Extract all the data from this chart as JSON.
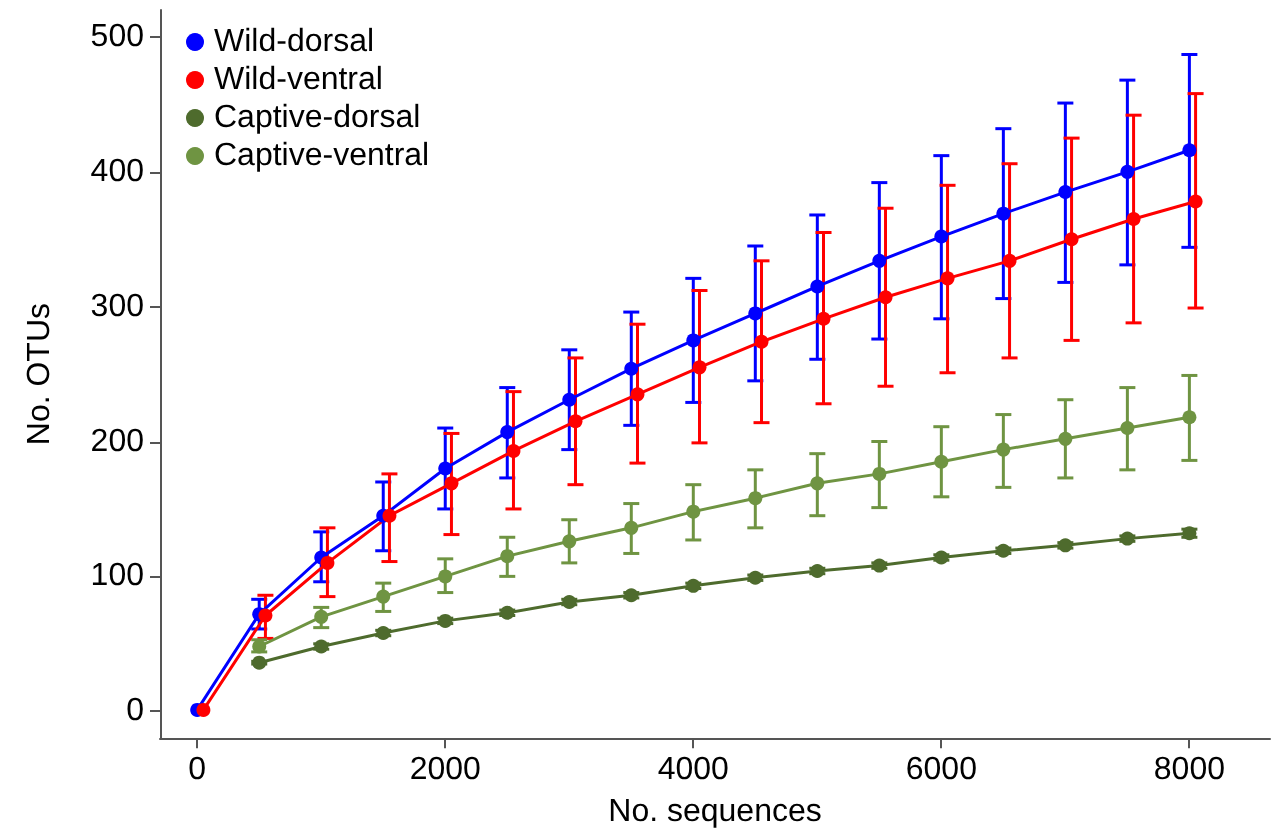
{
  "chart_data": {
    "type": "line",
    "xlabel": "No. sequences",
    "ylabel": "No. OTUs",
    "xlim": [
      -300,
      8650
    ],
    "xticks": [
      0,
      2000,
      4000,
      6000,
      8000
    ],
    "ylim": [
      -20,
      520
    ],
    "yticks": [
      0,
      100,
      200,
      300,
      400,
      500
    ],
    "grid": false,
    "legend": "top left",
    "marker": "circle",
    "line_style": "solid",
    "series": [
      {
        "name": "Wild-dorsal",
        "color": "#0000ff",
        "x": [
          0,
          500,
          1000,
          1500,
          2000,
          2500,
          3000,
          3500,
          4000,
          4500,
          5000,
          5500,
          6000,
          6500,
          7000,
          7500,
          8000
        ],
        "values": [
          1,
          72,
          114,
          145,
          180,
          207,
          231,
          254,
          275,
          295,
          315,
          334,
          352,
          369,
          385,
          400,
          416
        ],
        "errors": [
          null,
          [
            61,
            83
          ],
          [
            96,
            133
          ],
          [
            119,
            170
          ],
          [
            150,
            210
          ],
          [
            173,
            240
          ],
          [
            194,
            268
          ],
          [
            212,
            296
          ],
          [
            229,
            321
          ],
          [
            245,
            345
          ],
          [
            261,
            368
          ],
          [
            276,
            392
          ],
          [
            291,
            412
          ],
          [
            306,
            432
          ],
          [
            318,
            451
          ],
          [
            331,
            468
          ],
          [
            344,
            487
          ]
        ]
      },
      {
        "name": "Wild-ventral",
        "color": "#ff0000",
        "x": [
          50,
          550,
          1050,
          1550,
          2050,
          2550,
          3050,
          3550,
          4050,
          4550,
          5050,
          5550,
          6050,
          6550,
          7050,
          7550,
          8050
        ],
        "values": [
          1,
          71,
          110,
          145,
          169,
          193,
          215,
          235,
          255,
          274,
          291,
          307,
          321,
          334,
          350,
          365,
          378
        ],
        "errors": [
          null,
          [
            54,
            86
          ],
          [
            85,
            136
          ],
          [
            111,
            176
          ],
          [
            131,
            206
          ],
          [
            150,
            237
          ],
          [
            168,
            262
          ],
          [
            184,
            287
          ],
          [
            199,
            312
          ],
          [
            214,
            334
          ],
          [
            228,
            355
          ],
          [
            241,
            373
          ],
          [
            251,
            390
          ],
          [
            262,
            406
          ],
          [
            275,
            425
          ],
          [
            288,
            442
          ],
          [
            299,
            458
          ]
        ]
      },
      {
        "name": "Captive-dorsal",
        "color": "#4e6b2d",
        "x": [
          500,
          1000,
          1500,
          2000,
          2500,
          3000,
          3500,
          4000,
          4500,
          5000,
          5500,
          6000,
          6500,
          7000,
          7500,
          8000
        ],
        "values": [
          36,
          48,
          58,
          67,
          73,
          81,
          86,
          93,
          99,
          104,
          108,
          114,
          119,
          123,
          128,
          132
        ],
        "errors": [
          [
            35,
            37
          ],
          [
            46,
            50
          ],
          [
            56,
            60
          ],
          [
            65,
            69
          ],
          [
            71,
            75
          ],
          [
            79,
            83
          ],
          [
            84,
            88
          ],
          [
            91,
            95
          ],
          [
            97,
            101
          ],
          [
            102,
            106
          ],
          [
            106,
            110
          ],
          [
            112,
            116
          ],
          [
            117,
            121
          ],
          [
            121,
            125
          ],
          [
            126,
            130
          ],
          [
            129,
            135
          ]
        ]
      },
      {
        "name": "Captive-ventral",
        "color": "#6f9442",
        "x": [
          500,
          1000,
          1500,
          2000,
          2500,
          3000,
          3500,
          4000,
          4500,
          5000,
          5500,
          6000,
          6500,
          7000,
          7500,
          8000
        ],
        "values": [
          48,
          70,
          85,
          100,
          115,
          126,
          136,
          148,
          158,
          169,
          176,
          185,
          194,
          202,
          210,
          218
        ],
        "errors": [
          [
            44,
            53
          ],
          [
            62,
            77
          ],
          [
            74,
            95
          ],
          [
            88,
            113
          ],
          [
            100,
            129
          ],
          [
            110,
            142
          ],
          [
            117,
            154
          ],
          [
            127,
            168
          ],
          [
            136,
            179
          ],
          [
            145,
            191
          ],
          [
            151,
            200
          ],
          [
            159,
            211
          ],
          [
            166,
            220
          ],
          [
            173,
            231
          ],
          [
            179,
            240
          ],
          [
            186,
            249
          ]
        ]
      }
    ]
  }
}
